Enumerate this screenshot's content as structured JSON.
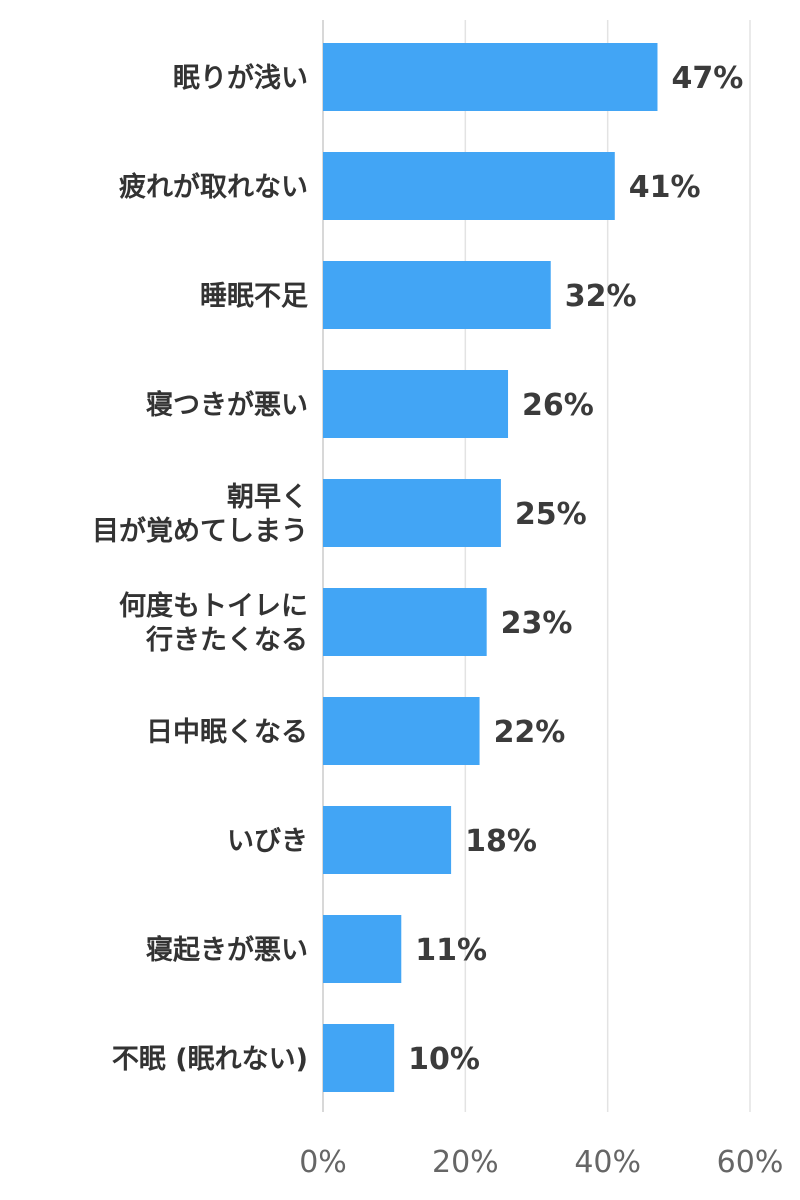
{
  "chart_data": {
    "type": "bar",
    "orientation": "horizontal",
    "categories": [
      [
        "眠りが浅い"
      ],
      [
        "疲れが取れない"
      ],
      [
        "睡眠不足"
      ],
      [
        "寝つきが悪い"
      ],
      [
        "朝早く",
        "目が覚めてしまう"
      ],
      [
        "何度もトイレに",
        "行きたくなる"
      ],
      [
        "日中眠くなる"
      ],
      [
        "いびき"
      ],
      [
        "寝起きが悪い"
      ],
      [
        "不眠 (眠れない)"
      ]
    ],
    "values": [
      47,
      41,
      32,
      26,
      25,
      23,
      22,
      18,
      11,
      10
    ],
    "value_labels": [
      "47%",
      "41%",
      "32%",
      "26%",
      "25%",
      "23%",
      "22%",
      "18%",
      "11%",
      "10%"
    ],
    "xlim": [
      0,
      60
    ],
    "x_ticks": [
      0,
      20,
      40,
      60
    ],
    "x_tick_labels": [
      "0%",
      "20%",
      "40%",
      "60%"
    ],
    "grid": true,
    "bar_color": "#42a5f5"
  }
}
